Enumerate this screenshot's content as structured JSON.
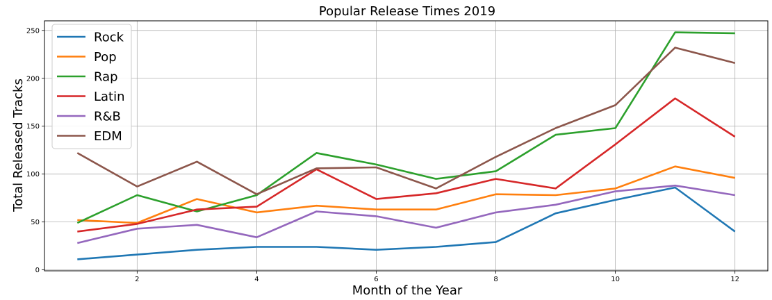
{
  "chart_data": {
    "type": "line",
    "title": "Popular Release Times 2019",
    "xlabel": "Month of the Year",
    "ylabel": "Total Released Tracks",
    "x": [
      1,
      2,
      3,
      4,
      5,
      6,
      7,
      8,
      9,
      10,
      11,
      12
    ],
    "xticks": [
      2,
      4,
      6,
      8,
      10,
      12
    ],
    "yticks": [
      0,
      50,
      100,
      150,
      200,
      250
    ],
    "xlim": [
      0.45,
      12.55
    ],
    "ylim": [
      -1,
      260
    ],
    "grid": true,
    "legend_position": "upper-left",
    "series": [
      {
        "name": "Rock",
        "color": "#1f77b4",
        "values": [
          11,
          16,
          21,
          24,
          24,
          21,
          24,
          29,
          59,
          73,
          86,
          40
        ]
      },
      {
        "name": "Pop",
        "color": "#ff7f0e",
        "values": [
          52,
          49,
          74,
          60,
          67,
          63,
          63,
          79,
          78,
          85,
          108,
          96
        ]
      },
      {
        "name": "Rap",
        "color": "#2ca02c",
        "values": [
          49,
          78,
          61,
          78,
          122,
          110,
          95,
          103,
          141,
          148,
          248,
          247
        ]
      },
      {
        "name": "Latin",
        "color": "#d62728",
        "values": [
          40,
          48,
          63,
          66,
          105,
          74,
          80,
          95,
          85,
          131,
          179,
          139
        ]
      },
      {
        "name": "R&B",
        "color": "#9467bd",
        "values": [
          28,
          43,
          47,
          34,
          61,
          56,
          44,
          60,
          68,
          82,
          88,
          78
        ]
      },
      {
        "name": "EDM",
        "color": "#8c564b",
        "values": [
          122,
          87,
          113,
          79,
          106,
          107,
          85,
          118,
          148,
          172,
          232,
          216
        ]
      }
    ]
  }
}
